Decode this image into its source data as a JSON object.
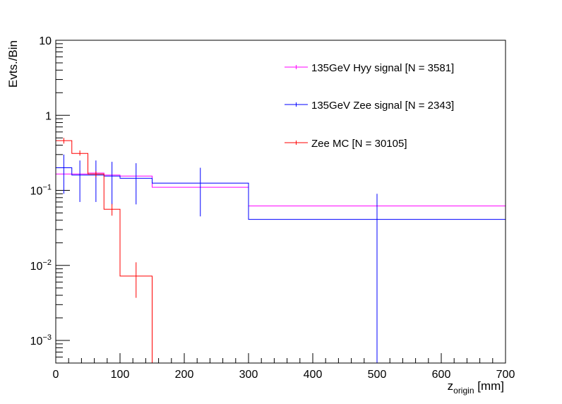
{
  "chart_data": {
    "type": "line",
    "ylabel": "Evts./Bin",
    "xlabel_main": "z",
    "xlabel_sub": "origin",
    "xlabel_unit": " [mm]",
    "xlim": [
      0,
      700
    ],
    "ylim": [
      0.0005,
      10
    ],
    "yscale": "log",
    "x_ticks": [
      0,
      100,
      200,
      300,
      400,
      500,
      600,
      700
    ],
    "y_ticks": [
      {
        "value": 10,
        "mantissa": "10",
        "exp": ""
      },
      {
        "value": 1,
        "mantissa": "1",
        "exp": ""
      },
      {
        "value": 0.1,
        "mantissa": "10",
        "exp": "−1"
      },
      {
        "value": 0.01,
        "mantissa": "10",
        "exp": "−2"
      },
      {
        "value": 0.001,
        "mantissa": "10",
        "exp": "−3"
      }
    ],
    "legend_position": "top-right",
    "series": [
      {
        "name": "135GeV Hyy signal [N = 3581]",
        "color": "#ff00ff",
        "bins": [
          {
            "lo": 0,
            "hi": 25,
            "y": 0.165
          },
          {
            "lo": 25,
            "hi": 50,
            "y": 0.165
          },
          {
            "lo": 50,
            "hi": 75,
            "y": 0.17
          },
          {
            "lo": 75,
            "hi": 100,
            "y": 0.16
          },
          {
            "lo": 100,
            "hi": 150,
            "y": 0.155
          },
          {
            "lo": 150,
            "hi": 300,
            "y": 0.11
          },
          {
            "lo": 300,
            "hi": 700,
            "y": 0.062
          }
        ]
      },
      {
        "name": "135GeV Zee signal [N = 2343]",
        "color": "#0000ff",
        "bins": [
          {
            "lo": 0,
            "hi": 25,
            "y": 0.2,
            "err_lo": 0.09,
            "err_hi": 0.3
          },
          {
            "lo": 25,
            "hi": 50,
            "y": 0.16,
            "err_lo": 0.07,
            "err_hi": 0.25
          },
          {
            "lo": 50,
            "hi": 75,
            "y": 0.16,
            "err_lo": 0.07,
            "err_hi": 0.25
          },
          {
            "lo": 75,
            "hi": 100,
            "y": 0.155,
            "err_lo": 0.065,
            "err_hi": 0.24
          },
          {
            "lo": 100,
            "hi": 150,
            "y": 0.145,
            "err_lo": 0.065,
            "err_hi": 0.23
          },
          {
            "lo": 150,
            "hi": 300,
            "y": 0.125,
            "err_lo": 0.045,
            "err_hi": 0.2
          },
          {
            "lo": 300,
            "hi": 700,
            "y": 0.041,
            "err_lo": 0.0005,
            "err_hi": 0.09
          }
        ]
      },
      {
        "name": "Zee MC [N = 30105]",
        "color": "#ff0000",
        "bins": [
          {
            "lo": 0,
            "hi": 25,
            "y": 0.46,
            "err_lo": 0.42,
            "err_hi": 0.5
          },
          {
            "lo": 25,
            "hi": 50,
            "y": 0.31,
            "err_lo": 0.29,
            "err_hi": 0.34
          },
          {
            "lo": 50,
            "hi": 75,
            "y": 0.165,
            "err_lo": 0.15,
            "err_hi": 0.18
          },
          {
            "lo": 75,
            "hi": 100,
            "y": 0.056,
            "err_lo": 0.046,
            "err_hi": 0.066
          },
          {
            "lo": 100,
            "hi": 150,
            "y": 0.0072,
            "err_lo": 0.0037,
            "err_hi": 0.011
          },
          {
            "lo": 150,
            "hi": 300,
            "y": 0.0005
          },
          {
            "lo": 300,
            "hi": 700,
            "y": 0.0005
          }
        ]
      }
    ]
  }
}
